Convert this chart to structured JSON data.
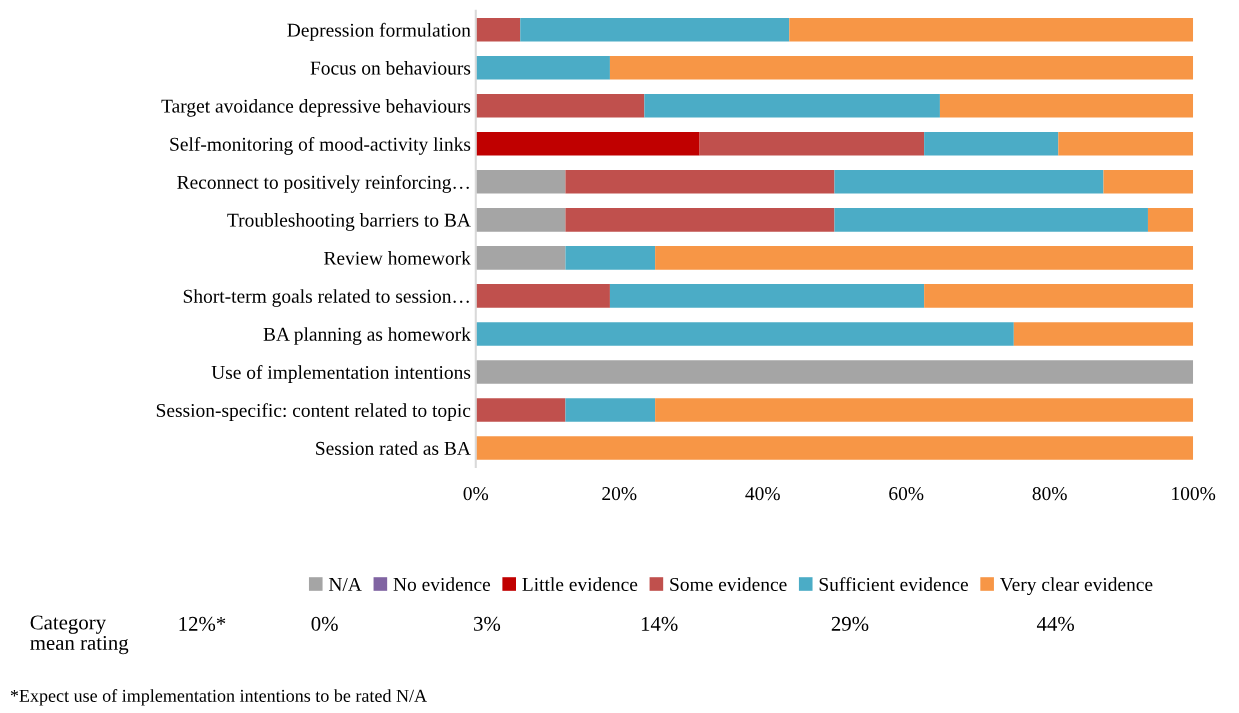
{
  "chart_data": {
    "type": "bar",
    "orientation": "horizontal",
    "stacked": true,
    "categories": [
      "Depression formulation",
      "Focus on behaviours",
      "Target avoidance depressive behaviours",
      "Self-monitoring of mood-activity links",
      "Reconnect to positively reinforcing…",
      "Troubleshooting barriers to BA",
      "Review homework",
      "Short-term goals related to session…",
      "BA planning as homework",
      "Use of implementation intentions",
      "Session-specific: content related to topic",
      "Session rated as BA"
    ],
    "series": [
      {
        "name": "N/A",
        "color": "#a5a5a5",
        "values": [
          0,
          0,
          0,
          0,
          12.5,
          12.5,
          12.5,
          0,
          0,
          100,
          0,
          0
        ]
      },
      {
        "name": "No evidence",
        "color": "#8064a2",
        "values": [
          0,
          0,
          0,
          0,
          0,
          0,
          0,
          0,
          0,
          0,
          0,
          0
        ]
      },
      {
        "name": "Little evidence",
        "color": "#c00000",
        "values": [
          0,
          0,
          0,
          31.2,
          0,
          0,
          0,
          0,
          0,
          0,
          0,
          0
        ]
      },
      {
        "name": "Some evidence",
        "color": "#c0504d",
        "values": [
          6.2,
          0,
          23.5,
          31.3,
          37.5,
          37.5,
          0,
          18.7,
          0,
          0,
          12.5,
          0
        ]
      },
      {
        "name": "Sufficient evidence",
        "color": "#4bacc6",
        "values": [
          37.5,
          18.7,
          41.2,
          18.7,
          37.5,
          43.7,
          12.5,
          43.8,
          75,
          0,
          12.5,
          0
        ]
      },
      {
        "name": "Very clear evidence",
        "color": "#f79646",
        "values": [
          56.3,
          81.3,
          35.3,
          18.8,
          12.5,
          6.3,
          75,
          37.5,
          25,
          0,
          75,
          100
        ]
      }
    ],
    "xlim": [
      0,
      100
    ],
    "xticks": [
      {
        "value": 0,
        "label": "0%"
      },
      {
        "value": 20,
        "label": "20%"
      },
      {
        "value": 40,
        "label": "40%"
      },
      {
        "value": 60,
        "label": "60%"
      },
      {
        "value": 80,
        "label": "80%"
      },
      {
        "value": 100,
        "label": "100%"
      }
    ],
    "grid": false,
    "legend": "bottom",
    "annotations": [
      "Category\nmean rating",
      "12%*",
      "0%",
      "3%",
      "14%",
      "29%",
      "44%",
      "*Expect use of implementation intentions to be rated N/A"
    ]
  }
}
